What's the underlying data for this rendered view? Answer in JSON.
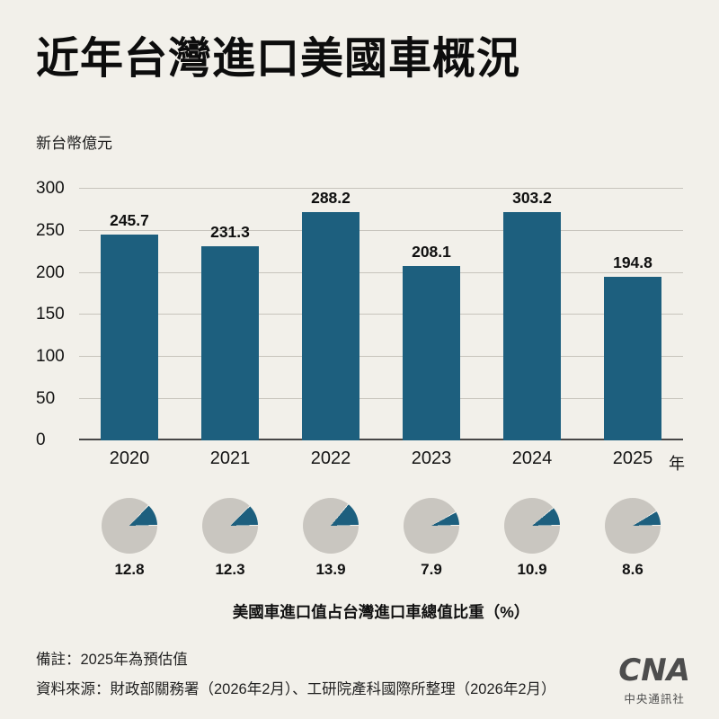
{
  "title": "近年台灣進口美國車概況",
  "chart_data": {
    "type": "bar",
    "title": "近年台灣進口美國車概況",
    "ylabel": "新台幣億元",
    "xlabel": "年",
    "categories": [
      "2020",
      "2021",
      "2022",
      "2023",
      "2024",
      "2025"
    ],
    "values": [
      245.7,
      231.3,
      288.2,
      208.1,
      303.2,
      194.8
    ],
    "ylim": [
      0,
      300
    ],
    "yticks": [
      0,
      50,
      100,
      150,
      200,
      250,
      300
    ],
    "grid": true,
    "legend": "none",
    "pie_row": {
      "type": "pie",
      "caption": "美國車進口值占台灣進口車總值比重（%）",
      "values": [
        12.8,
        12.3,
        13.9,
        7.9,
        10.9,
        8.6
      ]
    }
  },
  "footer": {
    "note": "備註：2025年為預估值",
    "source": "資料來源：財政部關務署（2026年2月）、工研院產科國際所整理（2026年2月）"
  },
  "logo": {
    "mark": "CNA",
    "name": "中央通訊社"
  },
  "colors": {
    "background": "#f2f0ea",
    "bar": "#1d5f7e",
    "pie_base": "#c9c6c0",
    "pie_wedge": "#1d5f7e",
    "baseline": "#474747",
    "gridline": "#c7c4bc"
  }
}
